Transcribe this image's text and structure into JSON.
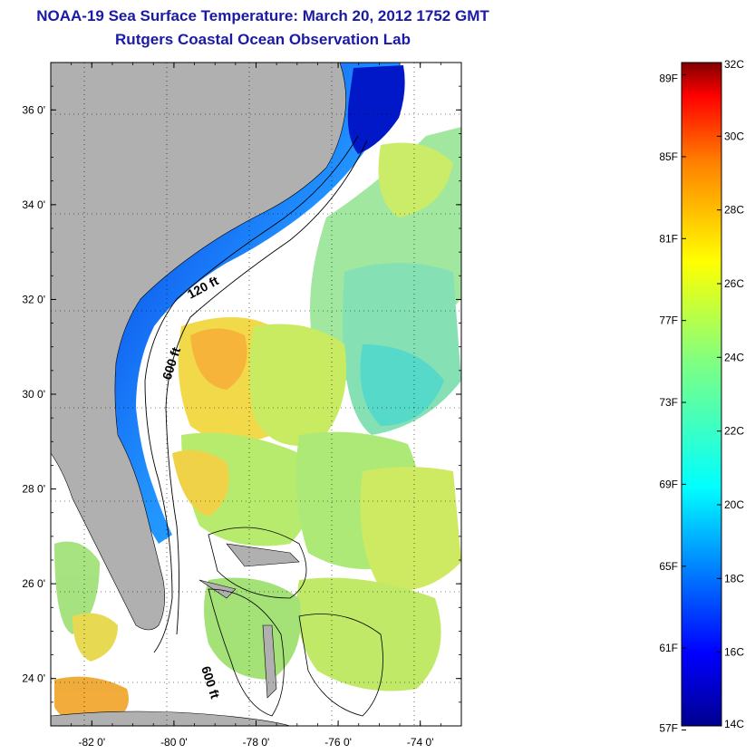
{
  "title": "NOAA-19 Sea Surface Temperature:  March 20, 2012 1752 GMT",
  "subtitle": "Rutgers Coastal Ocean Observation Lab",
  "map": {
    "lon_range": [
      -83,
      -73
    ],
    "lat_range": [
      23,
      37
    ],
    "lon_ticks": [
      {
        "value": -82,
        "label": "-82 0'"
      },
      {
        "value": -80,
        "label": "-80 0'"
      },
      {
        "value": -78,
        "label": "-78 0'"
      },
      {
        "value": -76,
        "label": "-76 0'"
      },
      {
        "value": -74,
        "label": "-74 0'"
      }
    ],
    "lat_ticks": [
      {
        "value": 24,
        "label": "24 0'"
      },
      {
        "value": 26,
        "label": "26 0'"
      },
      {
        "value": 28,
        "label": "28 0'"
      },
      {
        "value": 30,
        "label": "30 0'"
      },
      {
        "value": 32,
        "label": "32 0'"
      },
      {
        "value": 34,
        "label": "34 0'"
      },
      {
        "value": 36,
        "label": "36 0'"
      }
    ],
    "contour_labels": [
      "120 ft",
      "600 ft",
      "600 ft"
    ],
    "land_color": "#b0b0b0",
    "cloud_color": "#ffffff",
    "grid": "dotted"
  },
  "colorbar": {
    "min_c": 14,
    "max_c": 32,
    "celsius_ticks": [
      {
        "value": 32,
        "label": "32C"
      },
      {
        "value": 30,
        "label": "30C"
      },
      {
        "value": 28,
        "label": "28C"
      },
      {
        "value": 26,
        "label": "26C"
      },
      {
        "value": 24,
        "label": "24C"
      },
      {
        "value": 22,
        "label": "22C"
      },
      {
        "value": 20,
        "label": "20C"
      },
      {
        "value": 18,
        "label": "18C"
      },
      {
        "value": 16,
        "label": "16C"
      },
      {
        "value": 14,
        "label": "14C"
      }
    ],
    "fahrenheit_ticks": [
      {
        "value": 89,
        "label": "89F"
      },
      {
        "value": 85,
        "label": "85F"
      },
      {
        "value": 81,
        "label": "81F"
      },
      {
        "value": 77,
        "label": "77F"
      },
      {
        "value": 73,
        "label": "73F"
      },
      {
        "value": 69,
        "label": "69F"
      },
      {
        "value": 65,
        "label": "65F"
      },
      {
        "value": 61,
        "label": "61F"
      },
      {
        "value": 57,
        "label": "57F"
      }
    ],
    "colormap": [
      "#00008f",
      "#0000ff",
      "#007fff",
      "#00ffff",
      "#7fff7f",
      "#ffff00",
      "#ff7f00",
      "#ff0000",
      "#7f0000"
    ]
  }
}
